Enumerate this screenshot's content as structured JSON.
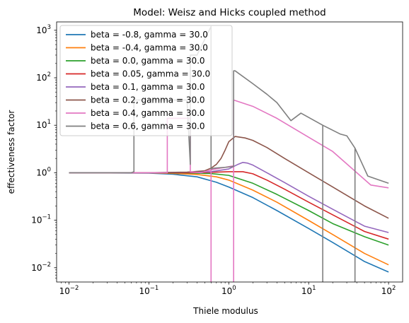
{
  "chart_data": {
    "type": "line",
    "title": "Model: Weisz and Hicks coupled method",
    "xlabel": "Thiele modulus",
    "ylabel": "effectiveness factor",
    "xscale": "log",
    "yscale": "log",
    "xlim": [
      0.007,
      150
    ],
    "ylim": [
      0.005,
      1500
    ],
    "x_ticks": [
      {
        "value": 0.01,
        "base": "10",
        "exp": "−2"
      },
      {
        "value": 0.1,
        "base": "10",
        "exp": "−1"
      },
      {
        "value": 1,
        "base": "10",
        "exp": "0"
      },
      {
        "value": 10,
        "base": "10",
        "exp": "1"
      },
      {
        "value": 100,
        "base": "10",
        "exp": "2"
      }
    ],
    "y_ticks": [
      {
        "value": 0.01,
        "base": "10",
        "exp": "−2"
      },
      {
        "value": 0.1,
        "base": "10",
        "exp": "−1"
      },
      {
        "value": 1,
        "base": "10",
        "exp": "0"
      },
      {
        "value": 10,
        "base": "10",
        "exp": "1"
      },
      {
        "value": 100,
        "base": "10",
        "exp": "2"
      },
      {
        "value": 1000,
        "base": "10",
        "exp": "3"
      }
    ],
    "legend_position": "upper-left",
    "grid": false,
    "series": [
      {
        "name": "beta = -0.8, gamma = 30.0",
        "color": "#1f77b4",
        "x": [
          0.01,
          0.1,
          0.2,
          0.4,
          0.7,
          1,
          2,
          4,
          10,
          20,
          50,
          100
        ],
        "y": [
          1.0,
          0.98,
          0.93,
          0.82,
          0.63,
          0.5,
          0.3,
          0.16,
          0.067,
          0.034,
          0.0135,
          0.0081
        ]
      },
      {
        "name": "beta = -0.4, gamma = 30.0",
        "color": "#ff7f0e",
        "x": [
          0.01,
          0.1,
          0.2,
          0.4,
          0.7,
          1,
          2,
          4,
          10,
          20,
          50,
          100
        ],
        "y": [
          1.0,
          0.99,
          0.97,
          0.92,
          0.82,
          0.7,
          0.43,
          0.24,
          0.099,
          0.05,
          0.02,
          0.0115
        ]
      },
      {
        "name": "beta = 0.0, gamma = 30.0",
        "color": "#2ca02c",
        "x": [
          0.01,
          0.1,
          0.3,
          0.6,
          1,
          2,
          4,
          10,
          20,
          50,
          100
        ],
        "y": [
          1.0,
          1.0,
          0.99,
          0.96,
          0.88,
          0.6,
          0.35,
          0.16,
          0.085,
          0.045,
          0.03
        ]
      },
      {
        "name": "beta = 0.05, gamma = 30.0",
        "color": "#d62728",
        "x": [
          0.01,
          0.1,
          0.3,
          0.6,
          1,
          1.5,
          2,
          3,
          5,
          10,
          20,
          50,
          100
        ],
        "y": [
          1.0,
          1.0,
          1.0,
          1.02,
          1.05,
          1.05,
          0.95,
          0.7,
          0.45,
          0.24,
          0.13,
          0.058,
          0.04
        ]
      },
      {
        "name": "beta = 0.1, gamma = 30.0",
        "color": "#9467bd",
        "x": [
          0.01,
          0.1,
          0.3,
          0.6,
          1,
          1.3,
          1.5,
          1.7,
          2,
          3,
          5,
          10,
          20,
          50,
          100
        ],
        "y": [
          1.0,
          1.0,
          1.02,
          1.05,
          1.2,
          1.5,
          1.65,
          1.6,
          1.45,
          1.0,
          0.62,
          0.32,
          0.17,
          0.075,
          0.055
        ]
      },
      {
        "name": "beta = 0.2, gamma = 30.0",
        "color": "#8c564b",
        "x": [
          0.01,
          0.1,
          0.3,
          0.5,
          0.6,
          0.7,
          0.8,
          0.9,
          1,
          1.2,
          1.6,
          2,
          3,
          5,
          10,
          20,
          50,
          100
        ],
        "y": [
          1.0,
          1.0,
          1.03,
          1.1,
          1.25,
          1.5,
          2.0,
          3.0,
          4.5,
          5.8,
          5.4,
          4.8,
          3.4,
          2.0,
          1.0,
          0.5,
          0.2,
          0.11
        ]
      },
      {
        "name": "beta = 0.4, gamma = 30.0",
        "color": "#e377c2",
        "x": [
          0.01,
          0.1,
          0.17,
          0.17,
          0.2,
          0.3,
          0.33,
          0.33,
          0.45,
          0.6,
          0.6,
          0.6,
          0.9,
          1.15,
          1.15,
          1.15,
          2,
          4,
          10,
          20,
          60,
          100
        ],
        "y": [
          1.0,
          1.0,
          1.0,
          14.0,
          14.0,
          14.0,
          14.0,
          1.05,
          1.0,
          1.15,
          0.005,
          1.15,
          1.3,
          1.4,
          0.005,
          34.0,
          25.0,
          14.0,
          5.6,
          2.8,
          0.55,
          0.48
        ]
      },
      {
        "name": "beta = 0.6, gamma = 30.0",
        "color": "#7f7f7f",
        "x": [
          0.01,
          0.06,
          0.065,
          0.065,
          0.1,
          0.2,
          0.3,
          0.33,
          0.33,
          0.4,
          0.6,
          0.6,
          0.65,
          0.9,
          1.15,
          1.15,
          1.2,
          2,
          3,
          4,
          6,
          8,
          15,
          15,
          15,
          25,
          30,
          38,
          38,
          38,
          55,
          100
        ],
        "y": [
          1.0,
          1.0,
          1.05,
          34.0,
          34.0,
          34.0,
          34.0,
          1.5,
          300,
          300,
          1200,
          1.2,
          1.25,
          1.3,
          1.35,
          140.0,
          140.0,
          75.0,
          45.0,
          30.0,
          12.5,
          18.0,
          10.0,
          0.005,
          10.0,
          6.5,
          6.0,
          3.3,
          0.005,
          3.3,
          0.85,
          0.6
        ]
      }
    ]
  }
}
